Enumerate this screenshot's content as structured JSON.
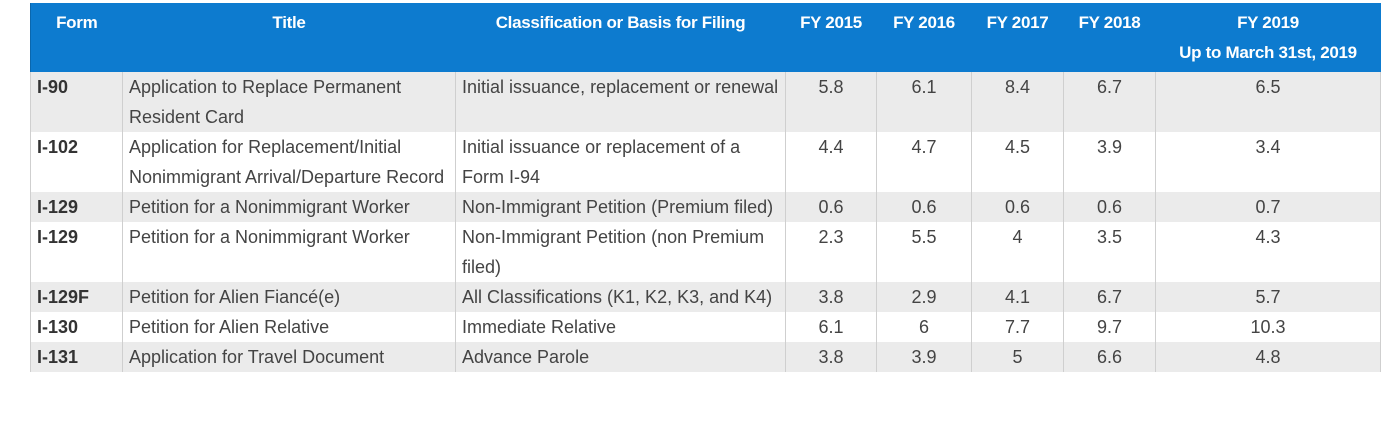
{
  "table": {
    "headers": {
      "form": "Form",
      "title": "Title",
      "classification": "Classification or Basis for Filing",
      "fy2015": "FY 2015",
      "fy2016": "FY 2016",
      "fy2017": "FY 2017",
      "fy2018": "FY 2018",
      "fy2019_line1": "FY 2019",
      "fy2019_line2": "Up to March 31st, 2019"
    },
    "rows": [
      {
        "form": "I-90",
        "title": "Application to Replace Permanent Resident Card",
        "classification": "Initial issuance, replacement or renewal",
        "fy2015": "5.8",
        "fy2016": "6.1",
        "fy2017": "8.4",
        "fy2018": "6.7",
        "fy2019": "6.5"
      },
      {
        "form": "I-102",
        "title": "Application for Replacement/Initial Nonimmigrant Arrival/Departure Record",
        "classification": "Initial issuance or replacement of a Form I-94",
        "fy2015": "4.4",
        "fy2016": "4.7",
        "fy2017": "4.5",
        "fy2018": "3.9",
        "fy2019": "3.4"
      },
      {
        "form": "I-129",
        "title": "Petition for a Nonimmigrant Worker",
        "classification": "Non-Immigrant Petition (Premium filed)",
        "fy2015": "0.6",
        "fy2016": "0.6",
        "fy2017": "0.6",
        "fy2018": "0.6",
        "fy2019": "0.7"
      },
      {
        "form": "I-129",
        "title": "Petition for a Nonimmigrant Worker",
        "classification": "Non-Immigrant Petition (non Premium filed)",
        "fy2015": "2.3",
        "fy2016": "5.5",
        "fy2017": "4",
        "fy2018": "3.5",
        "fy2019": "4.3"
      },
      {
        "form": "I-129F",
        "title": "Petition for Alien Fiancé(e)",
        "classification": "All Classifications (K1, K2, K3, and K4)",
        "fy2015": "3.8",
        "fy2016": "2.9",
        "fy2017": "4.1",
        "fy2018": "6.7",
        "fy2019": "5.7"
      },
      {
        "form": "I-130",
        "title": "Petition for Alien Relative",
        "classification": "Immediate Relative",
        "fy2015": "6.1",
        "fy2016": "6",
        "fy2017": "7.7",
        "fy2018": "9.7",
        "fy2019": "10.3"
      },
      {
        "form": "I-131",
        "title": "Application for Travel Document",
        "classification": "Advance Parole",
        "fy2015": "3.8",
        "fy2016": "3.9",
        "fy2017": "5",
        "fy2018": "6.6",
        "fy2019": "4.8"
      }
    ]
  }
}
